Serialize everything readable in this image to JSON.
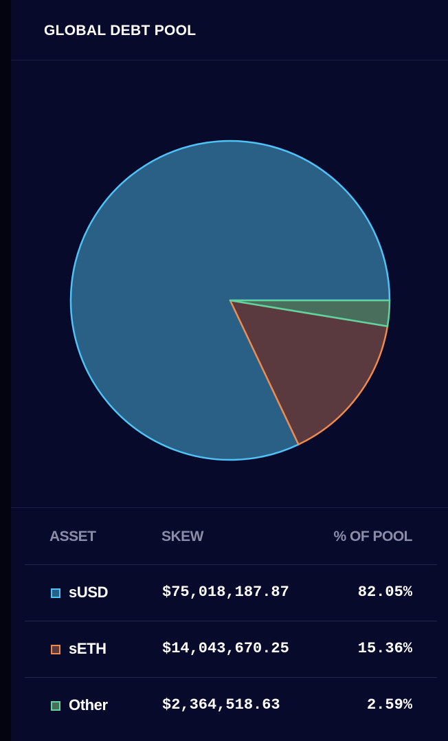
{
  "panel": {
    "title": "GLOBAL DEBT POOL"
  },
  "table": {
    "headers": {
      "asset": "ASSET",
      "skew": "SKEW",
      "pct": "% OF POOL"
    },
    "rows": [
      {
        "asset": "sUSD",
        "skew": "$75,018,187.87",
        "pct": "82.05%",
        "color": "#4fc3f7"
      },
      {
        "asset": "sETH",
        "skew": "$14,043,670.25",
        "pct": "15.36%",
        "color": "#ef8a4c"
      },
      {
        "asset": "Other",
        "skew": "$2,364,518.63",
        "pct": "2.59%",
        "color": "#5fd3a0"
      }
    ]
  },
  "chart_data": {
    "type": "pie",
    "categories": [
      "sUSD",
      "sETH",
      "Other"
    ],
    "values": [
      82.05,
      15.36,
      2.59
    ],
    "strokes": [
      "#4fc3f7",
      "#ef8a4c",
      "#5fd3a0"
    ],
    "fills": [
      "#2a6085",
      "#5a3a3e",
      "#4a6e5c"
    ]
  }
}
